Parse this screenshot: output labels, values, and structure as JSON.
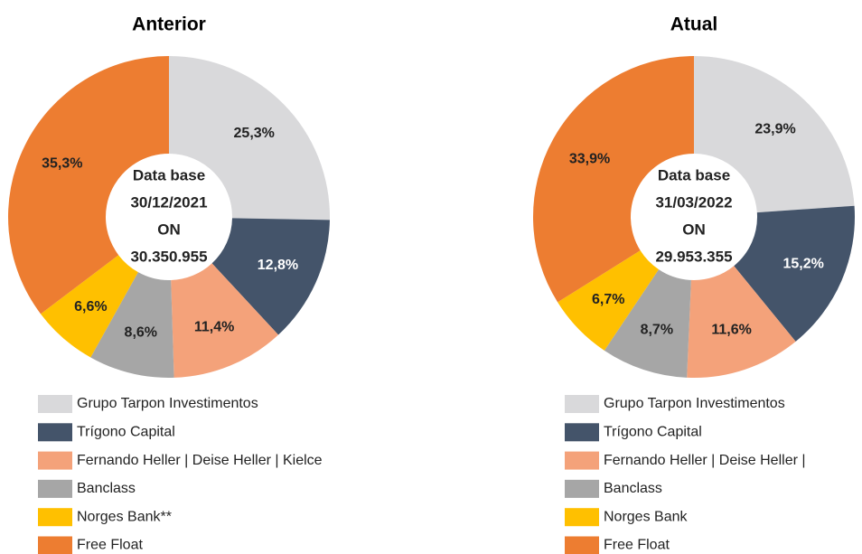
{
  "chart_data": [
    {
      "type": "donut",
      "title": "Anterior",
      "center_text": [
        "Data base",
        "30/12/2021",
        "ON",
        "30.350.955"
      ],
      "categories": [
        "Grupo Tarpon Investimentos",
        "Trígono Capital",
        "Fernando Heller | Deise Heller | Kielce",
        "Banclass",
        "Norges Bank**",
        "Free Float"
      ],
      "values": [
        25.3,
        12.8,
        11.4,
        8.6,
        6.6,
        35.3
      ],
      "value_labels": [
        "25,3%",
        "12,8%",
        "11,4%",
        "8,6%",
        "6,6%",
        "35,3%"
      ],
      "colors": [
        "#d9d9db",
        "#44546a",
        "#f4a27a",
        "#a6a6a6",
        "#ffc000",
        "#ed7d31"
      ]
    },
    {
      "type": "donut",
      "title": "Atual",
      "center_text": [
        "Data base",
        "31/03/2022",
        "ON",
        "29.953.355"
      ],
      "categories": [
        "Grupo Tarpon Investimentos",
        "Trígono Capital",
        "Fernando Heller | Deise Heller |",
        "Banclass",
        "Norges Bank",
        "Free Float"
      ],
      "values": [
        23.9,
        15.2,
        11.6,
        8.7,
        6.7,
        33.9
      ],
      "value_labels": [
        "23,9%",
        "15,2%",
        "11,6%",
        "8,7%",
        "6,7%",
        "33,9%"
      ],
      "colors": [
        "#d9d9db",
        "#44546a",
        "#f4a27a",
        "#a6a6a6",
        "#ffc000",
        "#ed7d31"
      ]
    }
  ]
}
